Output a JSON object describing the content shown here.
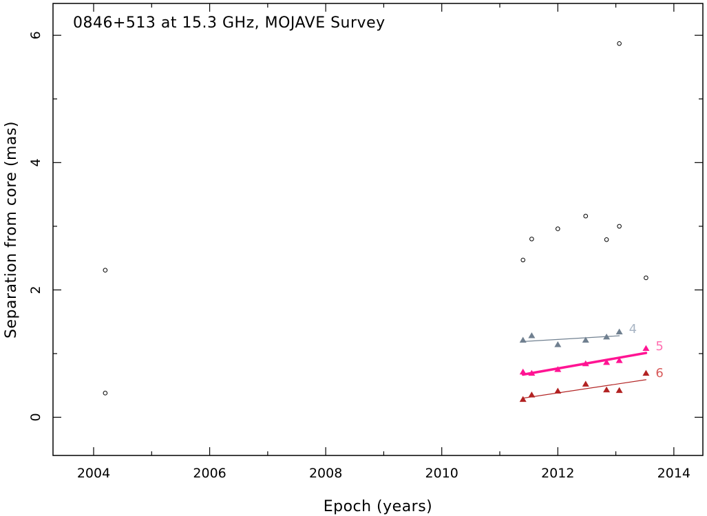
{
  "chart_data": {
    "type": "scatter",
    "title": "0846+513 at 15.3 GHz, MOJAVE Survey",
    "xlabel": "Epoch (years)",
    "ylabel": "Separation from core (mas)",
    "xlim": [
      2003.3,
      2014.5
    ],
    "ylim": [
      -0.6,
      6.5
    ],
    "x_ticks": [
      2004,
      2006,
      2008,
      2010,
      2012,
      2014
    ],
    "y_ticks": [
      0,
      2,
      4,
      6
    ],
    "grid": false,
    "unassigned_points": {
      "marker": "open-circle",
      "color": "#000000",
      "points": [
        [
          2004.2,
          2.31
        ],
        [
          2004.2,
          0.38
        ],
        [
          2011.4,
          2.47
        ],
        [
          2011.55,
          2.8
        ],
        [
          2012.0,
          2.96
        ],
        [
          2012.48,
          3.16
        ],
        [
          2012.84,
          2.79
        ],
        [
          2013.06,
          3.0
        ],
        [
          2013.06,
          5.87
        ],
        [
          2013.52,
          2.19
        ]
      ]
    },
    "series": [
      {
        "name": "4",
        "color": "#708090",
        "label_color": "#a8b4c4",
        "fit_width": 1.2,
        "points": [
          [
            2011.4,
            1.21
          ],
          [
            2011.55,
            1.28
          ],
          [
            2012.0,
            1.14
          ],
          [
            2012.48,
            1.21
          ],
          [
            2012.84,
            1.26
          ],
          [
            2013.06,
            1.34
          ]
        ],
        "fit": [
          [
            2011.4,
            1.19
          ],
          [
            2013.06,
            1.28
          ]
        ]
      },
      {
        "name": "5",
        "color": "#ff1493",
        "label_color": "#ff6fb0",
        "fit_width": 3.5,
        "points": [
          [
            2011.4,
            0.71
          ],
          [
            2011.55,
            0.69
          ],
          [
            2012.0,
            0.75
          ],
          [
            2012.48,
            0.84
          ],
          [
            2012.84,
            0.86
          ],
          [
            2013.06,
            0.89
          ],
          [
            2013.52,
            1.08
          ]
        ],
        "fit": [
          [
            2011.4,
            0.67
          ],
          [
            2013.52,
            1.01
          ]
        ]
      },
      {
        "name": "6",
        "color": "#b22222",
        "label_color": "#d85a5a",
        "fit_width": 1.2,
        "points": [
          [
            2011.4,
            0.28
          ],
          [
            2011.55,
            0.35
          ],
          [
            2012.0,
            0.41
          ],
          [
            2012.48,
            0.52
          ],
          [
            2012.84,
            0.43
          ],
          [
            2013.06,
            0.42
          ],
          [
            2013.52,
            0.69
          ]
        ],
        "fit": [
          [
            2011.4,
            0.3
          ],
          [
            2013.52,
            0.59
          ]
        ]
      }
    ]
  }
}
